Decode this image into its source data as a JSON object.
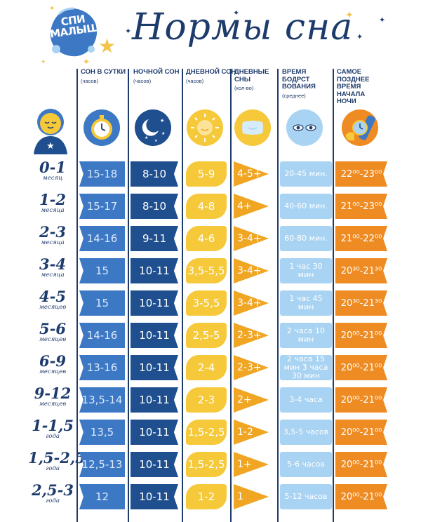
{
  "header": {
    "title": "Нормы сна",
    "logo_text": "СПИ МАЛЫШ",
    "brand_colors": {
      "navy": "#1d3b6b",
      "yellow": "#f2c44b"
    }
  },
  "columns": [
    {
      "title": "СОН В СУТКИ",
      "sub": "(часов)"
    },
    {
      "title": "НОЧНОЙ СОН",
      "sub": "(часов)"
    },
    {
      "title": "ДНЕВНОЙ СОН",
      "sub": "(часов)"
    },
    {
      "title": "ДНЕВНЫЕ СНЫ",
      "sub": "(кол-во)"
    },
    {
      "title": "ВРЕМЯ БОДРСТ ВОВАНИЯ",
      "sub": "(среднее)"
    },
    {
      "title": "САМОЕ ПОЗДНЕЕ ВРЕМЯ НАЧАЛА НОЧИ",
      "sub": ""
    }
  ],
  "icons": [
    "baby-icon",
    "clock-icon",
    "moon-stars-icon",
    "sun-icon",
    "pillow-icon",
    "open-eyes-icon",
    "wrist-watch-icon"
  ],
  "rows": [
    {
      "age": "0-1",
      "unit": "месяц",
      "total": "15-18",
      "night": "8-10",
      "day": "5-9",
      "naps": "4-5+",
      "wake": "20-45 мин.",
      "latest": "22⁰⁰-23⁰⁰"
    },
    {
      "age": "1-2",
      "unit": "месяца",
      "total": "15-17",
      "night": "8-10",
      "day": "4-8",
      "naps": "4+",
      "wake": "40-60 мин.",
      "latest": "21⁰⁰-23⁰⁰"
    },
    {
      "age": "2-3",
      "unit": "месяца",
      "total": "14-16",
      "night": "9-11",
      "day": "4-6",
      "naps": "3-4+",
      "wake": "60-80 мин.",
      "latest": "21⁰⁰-22⁰⁰"
    },
    {
      "age": "3-4",
      "unit": "месяца",
      "total": "15",
      "night": "10-11",
      "day": "3,5-5,5",
      "naps": "3-4+",
      "wake": "1 час 30 мин",
      "latest": "20³⁰-21³⁰"
    },
    {
      "age": "4-5",
      "unit": "месяцев",
      "total": "15",
      "night": "10-11",
      "day": "3-5,5",
      "naps": "3-4+",
      "wake": "1 час 45 мин",
      "latest": "20³⁰-21³⁰"
    },
    {
      "age": "5-6",
      "unit": "месяцев",
      "total": "14-16",
      "night": "10-11",
      "day": "2,5-5",
      "naps": "2-3+",
      "wake": "2 часа 10 мин",
      "latest": "20⁰⁰-21⁰⁰"
    },
    {
      "age": "6-9",
      "unit": "месяцев",
      "total": "13-16",
      "night": "10-11",
      "day": "2-4",
      "naps": "2-3+",
      "wake": "2 часа 15 мин 3 часа 30 мин",
      "latest": "20⁰⁰-21⁰⁰"
    },
    {
      "age": "9-12",
      "unit": "месяцев",
      "total": "13,5-14",
      "night": "10-11",
      "day": "2-3",
      "naps": "2+",
      "wake": "3-4 часа",
      "latest": "20⁰⁰-21⁰⁰"
    },
    {
      "age": "1-1,5",
      "unit": "года",
      "total": "13,5",
      "night": "10-11",
      "day": "1,5-2,5",
      "naps": "1-2",
      "wake": "3,5-5 часов",
      "latest": "20⁰⁰-21⁰⁰"
    },
    {
      "age": "1,5-2,5",
      "unit": "года",
      "total": "12,5-13",
      "night": "10-11",
      "day": "1,5-2,5",
      "naps": "1+",
      "wake": "5-6 часов",
      "latest": "20⁰⁰-21⁰⁰"
    },
    {
      "age": "2,5-3",
      "unit": "года",
      "total": "12",
      "night": "10-11",
      "day": "1-2",
      "naps": "1",
      "wake": "5-12 часов",
      "latest": "20⁰⁰-21⁰⁰"
    }
  ]
}
